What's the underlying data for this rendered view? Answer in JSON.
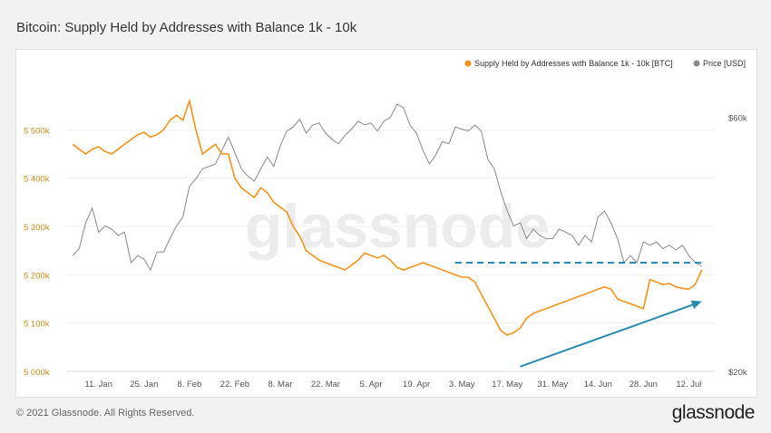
{
  "title": "Bitcoin: Supply Held by Addresses with Balance 1k - 10k",
  "footer": {
    "copyright": "© 2021 Glassnode. All Rights Reserved.",
    "logo": "glassnode"
  },
  "watermark": "glassnode",
  "colors": {
    "supply": "#f7931a",
    "price": "#8a8a8a",
    "annotation": "#2a8bb0"
  },
  "chart_data": {
    "type": "line",
    "x_tick_labels": [
      "11. Jan",
      "25. Jan",
      "8. Feb",
      "22. Feb",
      "8. Mar",
      "22. Mar",
      "5. Apr",
      "19. Apr",
      "3. May",
      "17. May",
      "31. May",
      "14. Jun",
      "28. Jun",
      "12. Jul"
    ],
    "y_left": {
      "ticks": [
        "5 000k",
        "5 100k",
        "5 200k",
        "5 300k",
        "5 400k",
        "5 500k"
      ],
      "ylim": [
        5000000,
        5600000
      ]
    },
    "y_right": {
      "ticks": [
        "$20k",
        "$60k"
      ],
      "scale": "log",
      "ylim": [
        20000,
        70000
      ]
    },
    "legend": [
      "Supply Held by Addresses with Balance 1k - 10k [BTC]",
      "Price [USD]"
    ],
    "legend_position": "top-right",
    "series": [
      {
        "name": "Supply Held by Addresses with Balance 1k - 10k [BTC]",
        "axis": "left",
        "x": [
          "2021-01-03",
          "2021-01-05",
          "2021-01-07",
          "2021-01-09",
          "2021-01-11",
          "2021-01-13",
          "2021-01-15",
          "2021-01-17",
          "2021-01-19",
          "2021-01-21",
          "2021-01-23",
          "2021-01-25",
          "2021-01-27",
          "2021-01-29",
          "2021-01-31",
          "2021-02-02",
          "2021-02-04",
          "2021-02-06",
          "2021-02-08",
          "2021-02-10",
          "2021-02-12",
          "2021-02-14",
          "2021-02-16",
          "2021-02-18",
          "2021-02-20",
          "2021-02-22",
          "2021-02-24",
          "2021-02-26",
          "2021-02-28",
          "2021-03-02",
          "2021-03-04",
          "2021-03-06",
          "2021-03-08",
          "2021-03-10",
          "2021-03-12",
          "2021-03-14",
          "2021-03-16",
          "2021-03-18",
          "2021-03-20",
          "2021-03-22",
          "2021-03-24",
          "2021-03-26",
          "2021-03-28",
          "2021-03-30",
          "2021-04-01",
          "2021-04-03",
          "2021-04-05",
          "2021-04-07",
          "2021-04-09",
          "2021-04-11",
          "2021-04-13",
          "2021-04-15",
          "2021-04-17",
          "2021-04-19",
          "2021-04-21",
          "2021-04-23",
          "2021-04-25",
          "2021-04-27",
          "2021-04-29",
          "2021-05-01",
          "2021-05-03",
          "2021-05-05",
          "2021-05-07",
          "2021-05-09",
          "2021-05-11",
          "2021-05-13",
          "2021-05-15",
          "2021-05-17",
          "2021-05-19",
          "2021-05-21",
          "2021-05-23",
          "2021-05-25",
          "2021-05-27",
          "2021-05-29",
          "2021-05-31",
          "2021-06-02",
          "2021-06-04",
          "2021-06-06",
          "2021-06-08",
          "2021-06-10",
          "2021-06-12",
          "2021-06-14",
          "2021-06-16",
          "2021-06-18",
          "2021-06-20",
          "2021-06-22",
          "2021-06-24",
          "2021-06-26",
          "2021-06-28",
          "2021-06-30",
          "2021-07-02",
          "2021-07-04",
          "2021-07-06",
          "2021-07-08",
          "2021-07-10",
          "2021-07-12",
          "2021-07-14",
          "2021-07-16"
        ],
        "values": [
          5470000,
          5460000,
          5450000,
          5460000,
          5465000,
          5455000,
          5450000,
          5460000,
          5470000,
          5480000,
          5490000,
          5495000,
          5485000,
          5490000,
          5500000,
          5520000,
          5530000,
          5520000,
          5560000,
          5500000,
          5450000,
          5460000,
          5470000,
          5450000,
          5450000,
          5400000,
          5380000,
          5370000,
          5360000,
          5380000,
          5370000,
          5350000,
          5340000,
          5330000,
          5300000,
          5280000,
          5250000,
          5240000,
          5230000,
          5225000,
          5220000,
          5215000,
          5210000,
          5220000,
          5230000,
          5245000,
          5240000,
          5235000,
          5240000,
          5230000,
          5215000,
          5210000,
          5215000,
          5220000,
          5225000,
          5220000,
          5215000,
          5210000,
          5205000,
          5200000,
          5195000,
          5195000,
          5185000,
          5160000,
          5135000,
          5110000,
          5085000,
          5075000,
          5080000,
          5090000,
          5110000,
          5120000,
          5125000,
          5130000,
          5135000,
          5140000,
          5145000,
          5150000,
          5155000,
          5160000,
          5165000,
          5170000,
          5175000,
          5170000,
          5150000,
          5145000,
          5140000,
          5135000,
          5130000,
          5190000,
          5185000,
          5180000,
          5182000,
          5175000,
          5172000,
          5170000,
          5180000,
          5210000
        ]
      },
      {
        "name": "Price [USD]",
        "axis": "right",
        "x": [
          "2021-01-03",
          "2021-01-05",
          "2021-01-07",
          "2021-01-09",
          "2021-01-11",
          "2021-01-13",
          "2021-01-15",
          "2021-01-17",
          "2021-01-19",
          "2021-01-21",
          "2021-01-23",
          "2021-01-25",
          "2021-01-27",
          "2021-01-29",
          "2021-01-31",
          "2021-02-02",
          "2021-02-04",
          "2021-02-06",
          "2021-02-08",
          "2021-02-10",
          "2021-02-12",
          "2021-02-14",
          "2021-02-16",
          "2021-02-18",
          "2021-02-20",
          "2021-02-22",
          "2021-02-24",
          "2021-02-26",
          "2021-02-28",
          "2021-03-02",
          "2021-03-04",
          "2021-03-06",
          "2021-03-08",
          "2021-03-10",
          "2021-03-12",
          "2021-03-14",
          "2021-03-16",
          "2021-03-18",
          "2021-03-20",
          "2021-03-22",
          "2021-03-24",
          "2021-03-26",
          "2021-03-28",
          "2021-03-30",
          "2021-04-01",
          "2021-04-03",
          "2021-04-05",
          "2021-04-07",
          "2021-04-09",
          "2021-04-11",
          "2021-04-13",
          "2021-04-15",
          "2021-04-17",
          "2021-04-19",
          "2021-04-21",
          "2021-04-23",
          "2021-04-25",
          "2021-04-27",
          "2021-04-29",
          "2021-05-01",
          "2021-05-03",
          "2021-05-05",
          "2021-05-07",
          "2021-05-09",
          "2021-05-11",
          "2021-05-13",
          "2021-05-15",
          "2021-05-17",
          "2021-05-19",
          "2021-05-21",
          "2021-05-23",
          "2021-05-25",
          "2021-05-27",
          "2021-05-29",
          "2021-05-31",
          "2021-06-02",
          "2021-06-04",
          "2021-06-06",
          "2021-06-08",
          "2021-06-10",
          "2021-06-12",
          "2021-06-14",
          "2021-06-16",
          "2021-06-18",
          "2021-06-20",
          "2021-06-22",
          "2021-06-24",
          "2021-06-26",
          "2021-06-28",
          "2021-06-30",
          "2021-07-02",
          "2021-07-04",
          "2021-07-06",
          "2021-07-08",
          "2021-07-10",
          "2021-07-12",
          "2021-07-14",
          "2021-07-16"
        ],
        "values": [
          33000,
          34000,
          38000,
          40500,
          36500,
          37500,
          37000,
          36000,
          36500,
          32000,
          33000,
          32500,
          31000,
          33500,
          33500,
          35500,
          37500,
          39000,
          44500,
          46000,
          48000,
          48500,
          49000,
          52000,
          55000,
          51500,
          48000,
          46500,
          45500,
          48000,
          50500,
          48500,
          53000,
          56500,
          57500,
          59500,
          56000,
          58000,
          58500,
          56000,
          54500,
          53500,
          55500,
          57000,
          59000,
          58000,
          58500,
          56500,
          59000,
          60000,
          63500,
          62500,
          58000,
          56000,
          52000,
          49000,
          51000,
          54000,
          53500,
          57500,
          57000,
          56500,
          58000,
          56500,
          50000,
          48000,
          43500,
          40000,
          37500,
          38000,
          35500,
          37000,
          36000,
          35500,
          35500,
          37000,
          36500,
          36000,
          34500,
          36000,
          35000,
          39000,
          40000,
          38000,
          35500,
          32000,
          33000,
          32000,
          35000,
          34500,
          35000,
          34000,
          34500,
          33800,
          34500,
          33000,
          32000,
          31500
        ]
      }
    ],
    "annotations": [
      {
        "type": "horizontal-dashed-line",
        "y": 5225000,
        "x_from": "2021-05-01",
        "x_to": "2021-07-16"
      },
      {
        "type": "arrow",
        "from": [
          "2021-05-21",
          5010000
        ],
        "to": [
          "2021-07-16",
          5145000
        ]
      }
    ]
  }
}
